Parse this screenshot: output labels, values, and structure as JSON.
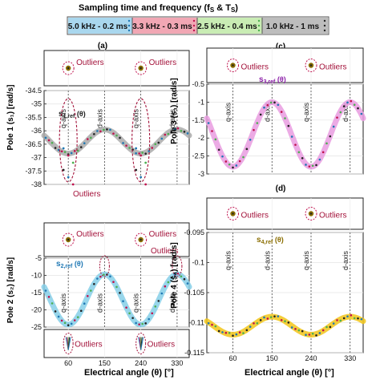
{
  "legend": {
    "title": "Sampling time and frequency (f",
    "title_sub": "S",
    "title_mid": " & T",
    "title_sub2": "S",
    "title_end": ")",
    "entries": [
      {
        "label": "5.0 kHz - 0.2 ms",
        "color": "#a9d7ee",
        "marker_color": "#1f78b4"
      },
      {
        "label": "3.3 kHz - 0.3 ms",
        "color": "#f1a7b4",
        "marker_color": "#c0114d"
      },
      {
        "label": "2.5 kHz - 0.4 ms",
        "color": "#c9ecb4",
        "marker_color": "#4caf50"
      },
      {
        "label": "1.0 kHz - 1 ms",
        "color": "#bdbdbd",
        "marker_color": "#222222"
      }
    ]
  },
  "xlabel": "Electrical angle (θ) [°]",
  "chart_data": [
    {
      "panel": "(a)",
      "type": "line",
      "ylabel": "Pole 1 (s₁) [rad/s]",
      "ylim": [
        -38,
        -34.5
      ],
      "yticks": [
        "-34.5",
        "-35",
        "-35.5",
        "-36",
        "-36.5",
        "-37",
        "-37.5",
        "-38"
      ],
      "xlim": [
        0,
        360
      ],
      "xticks": [],
      "axis_lines": [
        {
          "x": 60,
          "label": "q-axis"
        },
        {
          "x": 150,
          "label": "d-axis"
        },
        {
          "x": 240,
          "label": "q-axis"
        },
        {
          "x": 330,
          "label": "d-axis"
        }
      ],
      "ref_label": "s",
      "ref_sub": "1,ref",
      "ref_arg": " (θ)",
      "ref_color": "#222222",
      "band_color": "#aaaaaa",
      "series": [
        {
          "name": "s1,ref (θ)",
          "function": "center + amp·cos(2(θ−60°))",
          "center": -36.4,
          "amp": 0.45
        }
      ],
      "outliers_label": "Outliers",
      "outliers_top": [
        60,
        240
      ],
      "outliers_bottom": [
        60,
        240
      ]
    },
    {
      "panel": "(b)",
      "type": "line",
      "ylabel": "Pole 2 (s₂) [rad/s]",
      "ylim": [
        -25,
        -5
      ],
      "yticks": [
        "-5",
        "-10",
        "-15",
        "-20",
        "-25"
      ],
      "xlim": [
        0,
        360
      ],
      "xticks": [
        "60",
        "150",
        "240",
        "330"
      ],
      "axis_lines": [
        {
          "x": 60,
          "label": "q-axis"
        },
        {
          "x": 150,
          "label": "d-axis"
        },
        {
          "x": 240,
          "label": "q-axis"
        },
        {
          "x": 330,
          "label": "d-axis"
        }
      ],
      "ref_label": "s",
      "ref_sub": "2,ref",
      "ref_arg": " (θ)",
      "ref_color": "#1f78b4",
      "band_color": "#86cfe8",
      "series": [
        {
          "name": "s2,ref (θ)",
          "function": "center − amp·cos(2(θ−60°))",
          "center": -17,
          "amp": 7.3
        }
      ],
      "outliers_label": "Outliers",
      "outliers_top": [
        60,
        240
      ],
      "outliers_right": [
        150,
        330
      ],
      "outliers_bottom": [
        60,
        240
      ]
    },
    {
      "panel": "(c)",
      "type": "line",
      "ylabel": "Pole 3 (s₃) [rad/s]",
      "ylim": [
        -3,
        -0.5
      ],
      "yticks": [
        "-0.5",
        "-1",
        "-1.5",
        "-2",
        "-2.5",
        "-3"
      ],
      "xlim": [
        0,
        360
      ],
      "xticks": [],
      "axis_lines": [
        {
          "x": 60,
          "label": "q-axis"
        },
        {
          "x": 150,
          "label": "d-axis"
        },
        {
          "x": 240,
          "label": "q-axis"
        },
        {
          "x": 330,
          "label": "d-axis"
        }
      ],
      "ref_label": "s",
      "ref_sub": "3,ref",
      "ref_arg": " (θ)",
      "ref_color": "#8e24aa",
      "band_color": "#e99ce0",
      "series": [
        {
          "name": "s3,ref (θ)",
          "function": "center + amp·cos(2(θ−60°))",
          "center": -1.9,
          "amp": 0.9
        }
      ],
      "outliers_label": "Outliers",
      "outliers_top": [
        60,
        240
      ]
    },
    {
      "panel": "(d)",
      "type": "line",
      "ylabel": "Pole 4 (s₄) [rad/s]",
      "ylim": [
        -0.115,
        -0.095
      ],
      "yticks": [
        "-0.095",
        "-0.1",
        "-0.105",
        "-0.11",
        "-0.115"
      ],
      "xlim": [
        0,
        360
      ],
      "xticks": [
        "60",
        "150",
        "240",
        "330"
      ],
      "axis_lines": [
        {
          "x": 60,
          "label": "q-axis"
        },
        {
          "x": 150,
          "label": "d-axis"
        },
        {
          "x": 240,
          "label": "q-axis"
        },
        {
          "x": 330,
          "label": "d-axis"
        }
      ],
      "ref_label": "s",
      "ref_sub": "4,ref",
      "ref_arg": " (θ)",
      "ref_color": "#8a6d00",
      "band_color": "#f2c519",
      "series": [
        {
          "name": "s4,ref (θ)",
          "function": "center − amp·cos(2(θ−60°))",
          "center": -0.1105,
          "amp": 0.0015
        }
      ],
      "outliers_label": "Outliers",
      "outliers_top": [
        60,
        240
      ]
    }
  ]
}
